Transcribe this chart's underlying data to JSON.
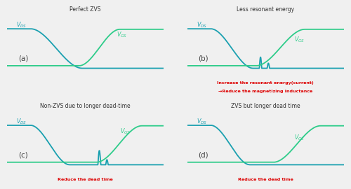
{
  "fig_bg": "#f0f0f0",
  "panel_bg": "#ffffff",
  "vds_color": "#1aa0b0",
  "vgs_color": "#2ecc8a",
  "label_vds_color": "#1aa0b0",
  "label_vgs_color": "#2ecc8a",
  "red_text_color": "#dd0000",
  "title_color": "#333333",
  "panels": [
    {
      "label": "(a)",
      "title": "Perfect ZVS",
      "bottom_text": "",
      "bottom_text2": "",
      "vds_type": "perfect_zvs"
    },
    {
      "label": "(b)",
      "title": "Less resonant energy",
      "bottom_text": "Increase the resonant energy(current)",
      "bottom_text2": "→Reduce the magnetizing inductance",
      "vds_type": "less_energy"
    },
    {
      "label": "(c)",
      "title": "Non-ZVS due to longer dead-time",
      "bottom_text": "Reduce the dead time",
      "bottom_text2": "",
      "vds_type": "longer_dead"
    },
    {
      "label": "(d)",
      "title": "ZVS but longer dead time",
      "bottom_text": "Reduce the dead time",
      "bottom_text2": "",
      "vds_type": "zvs_longer"
    }
  ]
}
